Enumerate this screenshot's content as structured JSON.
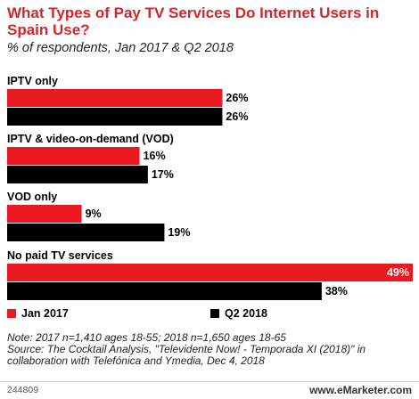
{
  "header": {
    "title": "What Types of Pay TV Services Do Internet Users in Spain Use?",
    "subtitle": "% of respondents, Jan 2017 & Q2 2018"
  },
  "colors": {
    "jan2017": "#e8191f",
    "q22018": "#000000"
  },
  "chart_data": {
    "type": "bar",
    "orientation": "horizontal",
    "categories": [
      "IPTV only",
      "IPTV & video-on-demand (VOD)",
      "VOD only",
      "No paid TV services"
    ],
    "series": [
      {
        "name": "Jan 2017",
        "values": [
          26,
          16,
          9,
          49
        ]
      },
      {
        "name": "Q2 2018",
        "values": [
          26,
          17,
          19,
          38
        ]
      }
    ],
    "value_suffix": "%",
    "xlim": [
      0,
      49
    ],
    "grid": false,
    "legend_position": "bottom"
  },
  "footer": {
    "notes": [
      "Note: 2017 n=1,410 ages 18-55; 2018 n=1,650 ages 18-65",
      "Source: The Cocktail Analysis, \"Televidente Now! - Temporada XI (2018)\" in collaboration with Telefónica and Ymedia, Dec 4, 2018"
    ],
    "code": "244809",
    "brand": "www.eMarketer.com"
  }
}
